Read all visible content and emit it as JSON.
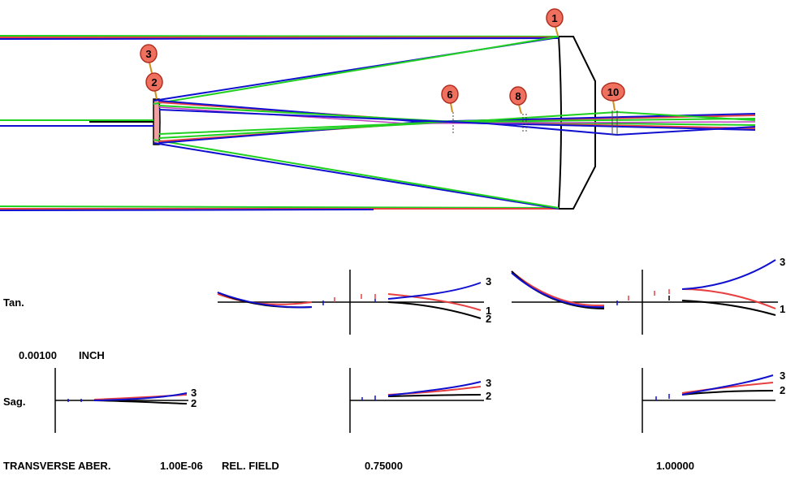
{
  "surface_badges": [
    "1",
    "3",
    "2",
    "6",
    "8",
    "10"
  ],
  "labels": {
    "tan": "Tan.",
    "sag": "Sag.",
    "scale_value": "0.00100",
    "scale_unit": "INCH",
    "transverse": "TRANSVERSE ABER.",
    "exponent": "1.00E-06",
    "rel_field": "REL. FIELD",
    "field_mid": "0.75000",
    "field_full": "1.00000"
  },
  "curve_labels": {
    "tan_mid": [
      "3",
      "1",
      "2"
    ],
    "tan_full": [
      "3",
      "1"
    ],
    "sag_axis": [
      "3",
      "2"
    ],
    "sag_mid": [
      "3",
      "2"
    ],
    "sag_full": [
      "3",
      "2"
    ]
  },
  "colors": {
    "wavelength_1": "#e84040",
    "wavelength_2": "#000000",
    "wavelength_3": "#1010d0",
    "ray_green": "#20d020",
    "badge_fill": "#f07060",
    "badge_stroke": "#b03020",
    "badge_stem": "#d09020"
  }
}
